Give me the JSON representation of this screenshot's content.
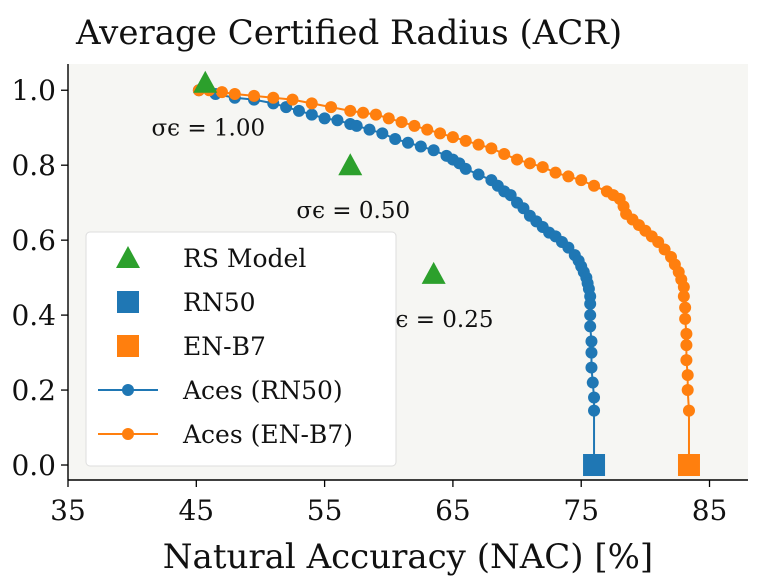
{
  "chart_data": {
    "type": "line",
    "title": "Average Certified Radius (ACR)",
    "xlabel": "Natural Accuracy (NAC) [%]",
    "ylabel": "",
    "xlim": [
      35,
      88
    ],
    "ylim": [
      -0.04,
      1.07
    ],
    "xticks": [
      35,
      45,
      55,
      65,
      75,
      85
    ],
    "yticks": [
      0.0,
      0.2,
      0.4,
      0.6,
      0.8,
      1.0
    ],
    "xtick_labels": [
      "35",
      "45",
      "55",
      "65",
      "75",
      "85"
    ],
    "ytick_labels": [
      "0.0",
      "0.2",
      "0.4",
      "0.6",
      "0.8",
      "1.0"
    ],
    "grid": false,
    "legend_position": "lower-left",
    "legend": [
      {
        "label": "RS Model",
        "marker": "triangle",
        "color": "#2ca02c"
      },
      {
        "label": "RN50",
        "marker": "square",
        "color": "#1f77b4"
      },
      {
        "label": "EN-B7",
        "marker": "square",
        "color": "#ff7f0e"
      },
      {
        "label": "Aces (RN50)",
        "marker": "circle-line",
        "color": "#1f77b4"
      },
      {
        "label": "Aces (EN-B7)",
        "marker": "circle-line",
        "color": "#ff7f0e"
      }
    ],
    "rs_models": {
      "name": "RS Model",
      "color": "#2ca02c",
      "points": [
        {
          "x": 45.7,
          "y": 1.02,
          "label": "σϵ = 1.00"
        },
        {
          "x": 57.0,
          "y": 0.8,
          "label": "σϵ = 0.50"
        },
        {
          "x": 63.5,
          "y": 0.51,
          "label": "σϵ = 0.25"
        }
      ]
    },
    "base_models": [
      {
        "name": "RN50",
        "color": "#1f77b4",
        "x": 76.0,
        "y": 0.0
      },
      {
        "name": "EN-B7",
        "color": "#ff7f0e",
        "x": 83.4,
        "y": 0.0
      }
    ],
    "series": [
      {
        "name": "Aces (RN50)",
        "color": "#1f77b4",
        "x": [
          45.2,
          46.5,
          48.0,
          49.5,
          51.0,
          52.0,
          53.0,
          54.0,
          55.0,
          56.0,
          57.0,
          57.5,
          58.5,
          59.5,
          60.5,
          61.5,
          62.5,
          63.5,
          64.5,
          65.0,
          65.5,
          66.0,
          67.0,
          68.0,
          68.5,
          69.0,
          69.5,
          70.0,
          70.5,
          71.0,
          71.5,
          72.0,
          72.5,
          73.0,
          73.5,
          74.0,
          74.5,
          74.8,
          75.0,
          75.2,
          75.4,
          75.5,
          75.6,
          75.7,
          75.7,
          75.7,
          75.7,
          75.8,
          75.8,
          75.8,
          75.9,
          76.0,
          76.0
        ],
        "y": [
          1.0,
          0.99,
          0.98,
          0.975,
          0.965,
          0.955,
          0.945,
          0.935,
          0.925,
          0.92,
          0.91,
          0.905,
          0.895,
          0.885,
          0.87,
          0.86,
          0.85,
          0.84,
          0.825,
          0.815,
          0.805,
          0.79,
          0.775,
          0.76,
          0.745,
          0.73,
          0.72,
          0.7,
          0.685,
          0.665,
          0.65,
          0.635,
          0.62,
          0.61,
          0.595,
          0.58,
          0.56,
          0.545,
          0.53,
          0.515,
          0.5,
          0.485,
          0.47,
          0.45,
          0.43,
          0.4,
          0.37,
          0.33,
          0.3,
          0.26,
          0.22,
          0.18,
          0.145
        ]
      },
      {
        "name": "Aces (EN-B7)",
        "color": "#ff7f0e",
        "x": [
          45.2,
          46.0,
          47.0,
          48.0,
          49.5,
          51.0,
          52.5,
          54.0,
          55.5,
          57.0,
          58.0,
          59.0,
          60.0,
          61.0,
          62.0,
          63.0,
          64.0,
          65.0,
          66.0,
          67.0,
          68.0,
          69.0,
          70.0,
          71.0,
          72.0,
          73.0,
          74.0,
          75.0,
          76.0,
          77.0,
          77.5,
          78.0,
          78.3,
          78.5,
          79.0,
          79.5,
          80.0,
          80.5,
          81.0,
          81.5,
          82.0,
          82.3,
          82.6,
          82.8,
          83.0,
          83.0,
          83.1,
          83.1,
          83.2,
          83.2,
          83.2,
          83.3,
          83.3,
          83.4
        ],
        "y": [
          1.0,
          1.0,
          0.995,
          0.99,
          0.985,
          0.98,
          0.975,
          0.965,
          0.955,
          0.945,
          0.94,
          0.935,
          0.925,
          0.915,
          0.905,
          0.895,
          0.885,
          0.875,
          0.865,
          0.855,
          0.845,
          0.83,
          0.815,
          0.805,
          0.795,
          0.78,
          0.77,
          0.76,
          0.745,
          0.73,
          0.72,
          0.71,
          0.69,
          0.67,
          0.655,
          0.64,
          0.625,
          0.61,
          0.595,
          0.575,
          0.555,
          0.535,
          0.515,
          0.495,
          0.475,
          0.45,
          0.42,
          0.39,
          0.35,
          0.32,
          0.28,
          0.24,
          0.2,
          0.145
        ]
      }
    ]
  }
}
